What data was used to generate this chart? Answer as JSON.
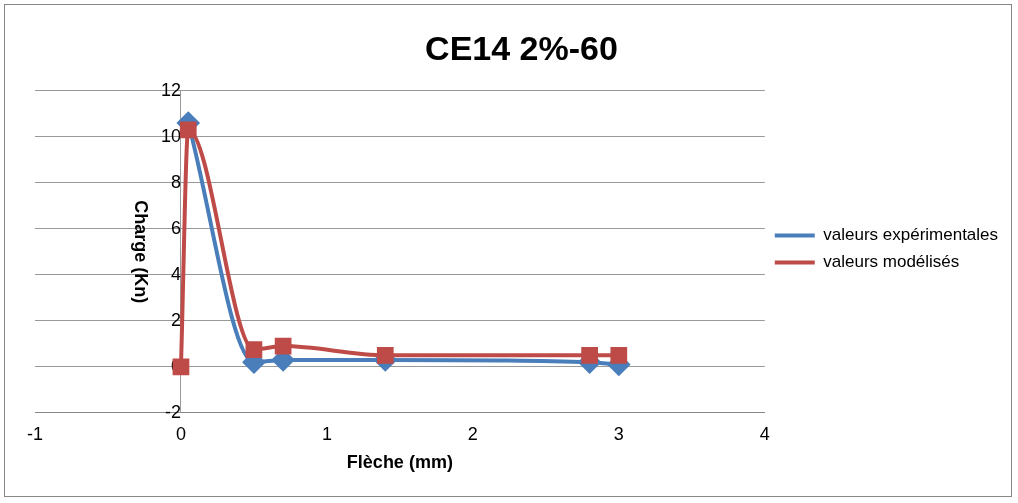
{
  "chart_data": {
    "type": "line",
    "title": "CE14 2%-60",
    "xlabel": "Flèche (mm)",
    "ylabel": "Charge (Kn)",
    "xlim": [
      -1,
      4
    ],
    "xticks": [
      -1,
      0,
      1,
      2,
      3,
      4
    ],
    "ylim": [
      -2,
      12
    ],
    "yticks": [
      -2,
      0,
      2,
      4,
      6,
      8,
      10,
      12
    ],
    "grid": "y",
    "legend": "right",
    "line_style": "solid",
    "series": [
      {
        "name": "valeurs expérimentales",
        "color": "#4a7ebb",
        "marker": "diamond",
        "x": [
          0.05,
          0.5,
          0.7,
          1.4,
          2.8,
          3
        ],
        "values": [
          10.6,
          0.2,
          0.3,
          0.3,
          0.2,
          0.1
        ]
      },
      {
        "name": "valeurs modélisés",
        "color": "#be4b48",
        "marker": "square",
        "x": [
          0,
          0.05,
          0.5,
          0.7,
          1.4,
          2.8,
          3
        ],
        "values": [
          0,
          10.3,
          0.75,
          0.9,
          0.5,
          0.5,
          0.5
        ]
      }
    ]
  }
}
